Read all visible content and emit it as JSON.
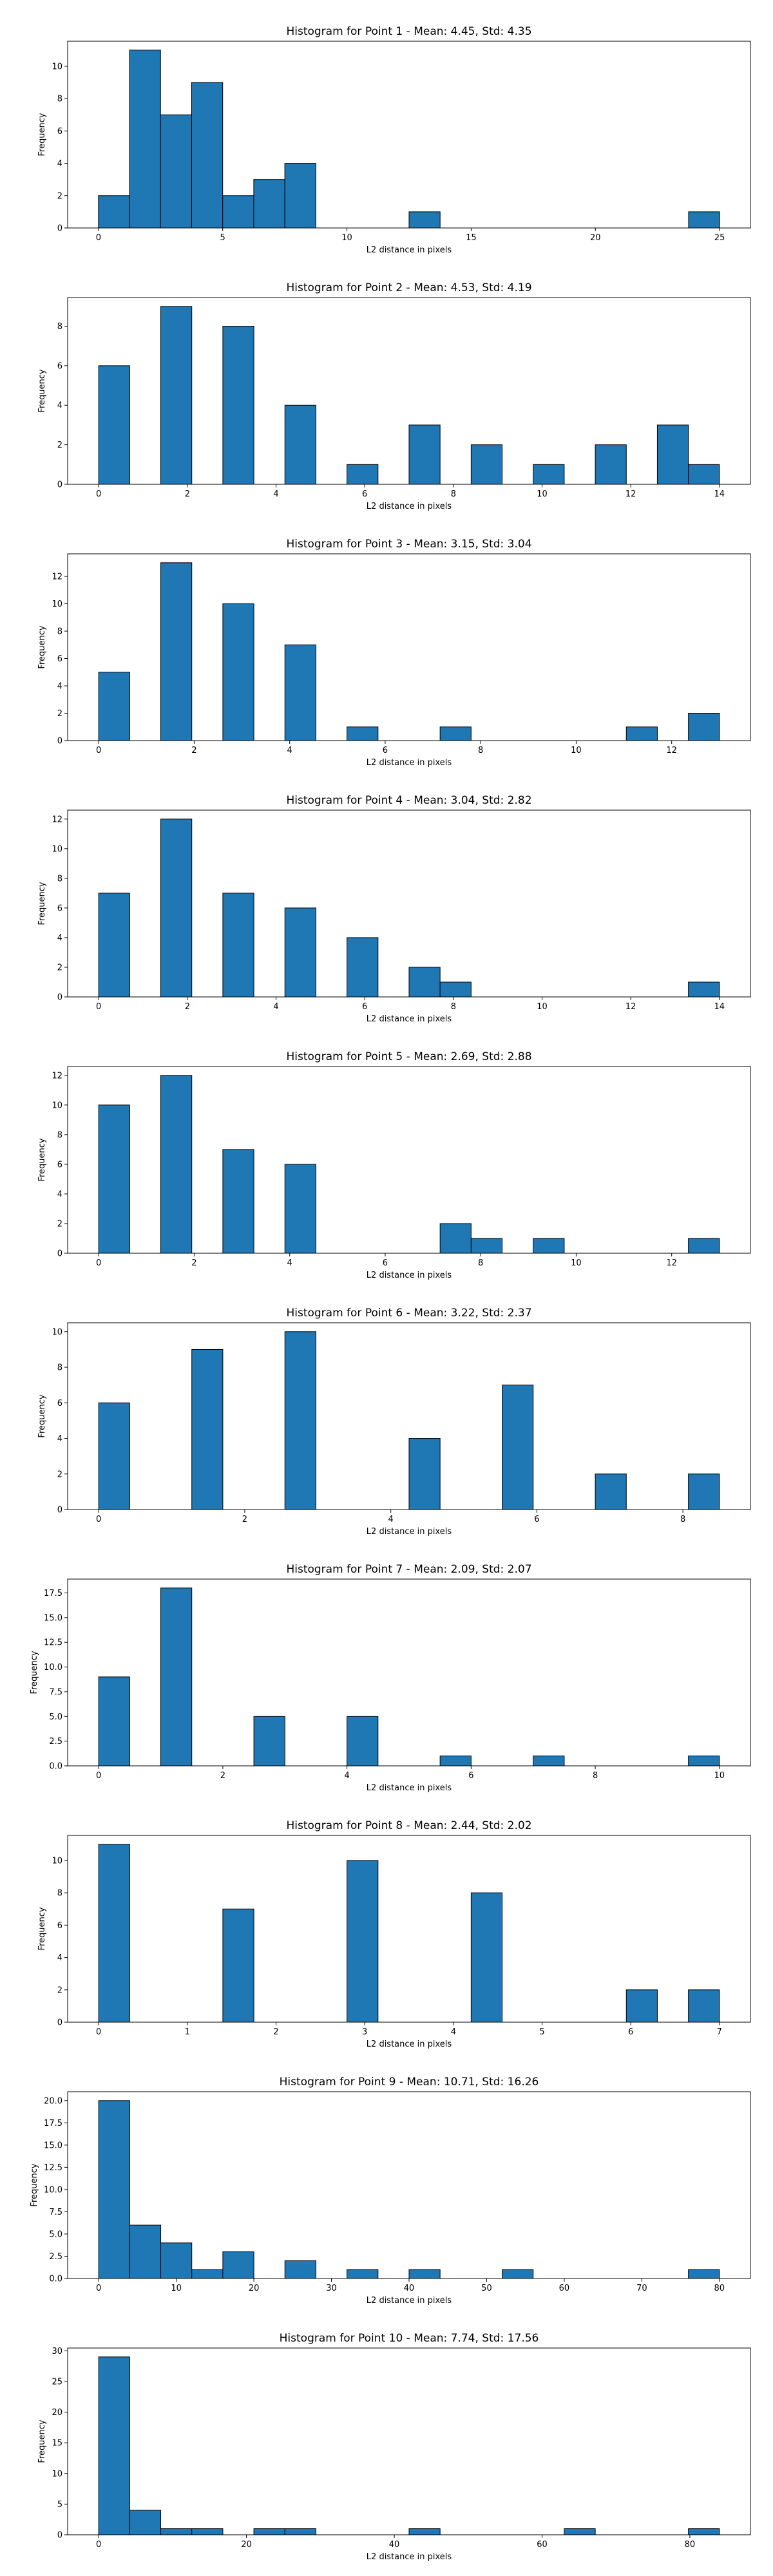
{
  "colors": {
    "bar": "#1f77b4",
    "edge": "#000000",
    "background": "#ffffff"
  },
  "chart_data": [
    {
      "type": "bar",
      "title": "Histogram for Point 1 - Mean: 4.45, Std: 4.35",
      "xlabel": "L2 distance in pixels",
      "ylabel": "Frequency",
      "xlim": [
        -1.24,
        26.24
      ],
      "ylim": [
        0,
        11.55
      ],
      "xticks": [
        0,
        5,
        10,
        15,
        20,
        25
      ],
      "yticks": [
        0,
        2,
        4,
        6,
        8,
        10
      ],
      "bins": [
        [
          0,
          1.25,
          2
        ],
        [
          1.25,
          2.5,
          11
        ],
        [
          2.5,
          3.75,
          7
        ],
        [
          3.75,
          5,
          9
        ],
        [
          5,
          6.25,
          2
        ],
        [
          6.25,
          7.5,
          3
        ],
        [
          7.5,
          8.75,
          4
        ],
        [
          12.5,
          13.75,
          1
        ],
        [
          23.75,
          25,
          1
        ]
      ]
    },
    {
      "type": "bar",
      "title": "Histogram for Point 2 - Mean: 4.53, Std: 4.19",
      "xlabel": "L2 distance in pixels",
      "ylabel": "Frequency",
      "xlim": [
        -0.7,
        14.7
      ],
      "ylim": [
        0,
        9.45
      ],
      "xticks": [
        0,
        2,
        4,
        6,
        8,
        10,
        12,
        14
      ],
      "yticks": [
        0,
        2,
        4,
        6,
        8
      ],
      "bins": [
        [
          0,
          0.7,
          6
        ],
        [
          1.4,
          2.1,
          9
        ],
        [
          2.8,
          3.5,
          8
        ],
        [
          4.2,
          4.9,
          4
        ],
        [
          5.6,
          6.3,
          1
        ],
        [
          7,
          7.7,
          3
        ],
        [
          8.4,
          9.1,
          2
        ],
        [
          9.8,
          10.5,
          1
        ],
        [
          11.2,
          11.9,
          2
        ],
        [
          12.6,
          13.3,
          3
        ],
        [
          13.3,
          14,
          1
        ]
      ]
    },
    {
      "type": "bar",
      "title": "Histogram for Point 3 - Mean: 3.15, Std: 3.04",
      "xlabel": "L2 distance in pixels",
      "ylabel": "Frequency",
      "xlim": [
        -0.65,
        13.65
      ],
      "ylim": [
        0,
        13.65
      ],
      "xticks": [
        0,
        2,
        4,
        6,
        8,
        10,
        12
      ],
      "yticks": [
        0,
        2,
        4,
        6,
        8,
        10,
        12
      ],
      "bins": [
        [
          0,
          0.65,
          5
        ],
        [
          1.3,
          1.95,
          13
        ],
        [
          2.6,
          3.25,
          10
        ],
        [
          3.9,
          4.55,
          7
        ],
        [
          5.2,
          5.85,
          1
        ],
        [
          7.15,
          7.8,
          1
        ],
        [
          11.05,
          11.7,
          1
        ],
        [
          12.35,
          13,
          2
        ]
      ]
    },
    {
      "type": "bar",
      "title": "Histogram for Point 4 - Mean: 3.04, Std: 2.82",
      "xlabel": "L2 distance in pixels",
      "ylabel": "Frequency",
      "xlim": [
        -0.7,
        14.7
      ],
      "ylim": [
        0,
        12.6
      ],
      "xticks": [
        0,
        2,
        4,
        6,
        8,
        10,
        12,
        14
      ],
      "yticks": [
        0,
        2,
        4,
        6,
        8,
        10,
        12
      ],
      "bins": [
        [
          0,
          0.7,
          7
        ],
        [
          1.4,
          2.1,
          12
        ],
        [
          2.8,
          3.5,
          7
        ],
        [
          4.2,
          4.9,
          6
        ],
        [
          5.6,
          6.3,
          4
        ],
        [
          7,
          7.7,
          2
        ],
        [
          7.7,
          8.4,
          1
        ],
        [
          13.3,
          14,
          1
        ]
      ]
    },
    {
      "type": "bar",
      "title": "Histogram for Point 5 - Mean: 2.69, Std: 2.88",
      "xlabel": "L2 distance in pixels",
      "ylabel": "Frequency",
      "xlim": [
        -0.65,
        13.65
      ],
      "ylim": [
        0,
        12.6
      ],
      "xticks": [
        0,
        2,
        4,
        6,
        8,
        10,
        12
      ],
      "yticks": [
        0,
        2,
        4,
        6,
        8,
        10,
        12
      ],
      "bins": [
        [
          0,
          0.65,
          10
        ],
        [
          1.3,
          1.95,
          12
        ],
        [
          2.6,
          3.25,
          7
        ],
        [
          3.9,
          4.55,
          6
        ],
        [
          7.15,
          7.8,
          2
        ],
        [
          7.8,
          8.45,
          1
        ],
        [
          9.1,
          9.75,
          1
        ],
        [
          12.35,
          13,
          1
        ]
      ]
    },
    {
      "type": "bar",
      "title": "Histogram for Point 6 - Mean: 3.22, Std: 2.37",
      "xlabel": "L2 distance in pixels",
      "ylabel": "Frequency",
      "xlim": [
        -0.425,
        8.925
      ],
      "ylim": [
        0,
        10.5
      ],
      "xticks": [
        0,
        2,
        4,
        6,
        8
      ],
      "yticks": [
        0,
        2,
        4,
        6,
        8,
        10
      ],
      "bins": [
        [
          0,
          0.425,
          6
        ],
        [
          1.275,
          1.7,
          9
        ],
        [
          2.55,
          2.975,
          10
        ],
        [
          4.25,
          4.675,
          4
        ],
        [
          5.525,
          5.95,
          7
        ],
        [
          6.8,
          7.225,
          2
        ],
        [
          8.075,
          8.5,
          2
        ]
      ]
    },
    {
      "type": "bar",
      "title": "Histogram for Point 7 - Mean: 2.09, Std: 2.07",
      "xlabel": "L2 distance in pixels",
      "ylabel": "Frequency",
      "xlim": [
        -0.5,
        10.5
      ],
      "ylim": [
        0,
        18.9
      ],
      "xticks": [
        0,
        2,
        4,
        6,
        8,
        10
      ],
      "yticks": [
        0.0,
        2.5,
        5.0,
        7.5,
        10.0,
        12.5,
        15.0,
        17.5
      ],
      "yticklabels": [
        "0.0",
        "2.5",
        "5.0",
        "7.5",
        "10.0",
        "12.5",
        "15.0",
        "17.5"
      ],
      "bins": [
        [
          0,
          0.5,
          9
        ],
        [
          1,
          1.5,
          18
        ],
        [
          2.5,
          3,
          5
        ],
        [
          4,
          4.5,
          5
        ],
        [
          5.5,
          6,
          1
        ],
        [
          7,
          7.5,
          1
        ],
        [
          9.5,
          10,
          1
        ]
      ]
    },
    {
      "type": "bar",
      "title": "Histogram for Point 8 - Mean: 2.44, Std: 2.02",
      "xlabel": "L2 distance in pixels",
      "ylabel": "Frequency",
      "xlim": [
        -0.35,
        7.35
      ],
      "ylim": [
        0,
        11.55
      ],
      "xticks": [
        0,
        1,
        2,
        3,
        4,
        5,
        6,
        7
      ],
      "yticks": [
        0,
        2,
        4,
        6,
        8,
        10
      ],
      "bins": [
        [
          0,
          0.35,
          11
        ],
        [
          1.4,
          1.75,
          7
        ],
        [
          2.8,
          3.15,
          10
        ],
        [
          4.2,
          4.55,
          8
        ],
        [
          5.95,
          6.3,
          2
        ],
        [
          6.65,
          7,
          2
        ]
      ]
    },
    {
      "type": "bar",
      "title": "Histogram for Point 9 - Mean: 10.71, Std: 16.26",
      "xlabel": "L2 distance in pixels",
      "ylabel": "Frequency",
      "xlim": [
        -4,
        84
      ],
      "ylim": [
        0,
        21
      ],
      "xticks": [
        0,
        10,
        20,
        30,
        40,
        50,
        60,
        70,
        80
      ],
      "yticks": [
        0.0,
        2.5,
        5.0,
        7.5,
        10.0,
        12.5,
        15.0,
        17.5,
        20.0
      ],
      "yticklabels": [
        "0.0",
        "2.5",
        "5.0",
        "7.5",
        "10.0",
        "12.5",
        "15.0",
        "17.5",
        "20.0"
      ],
      "bins": [
        [
          0,
          4,
          20
        ],
        [
          4,
          8,
          6
        ],
        [
          8,
          12,
          4
        ],
        [
          12,
          16,
          1
        ],
        [
          16,
          20,
          3
        ],
        [
          24,
          28,
          2
        ],
        [
          32,
          36,
          1
        ],
        [
          40,
          44,
          1
        ],
        [
          52,
          56,
          1
        ],
        [
          76,
          80,
          1
        ]
      ]
    },
    {
      "type": "bar",
      "title": "Histogram for Point 10 - Mean: 7.74, Std: 17.56",
      "xlabel": "L2 distance in pixels",
      "ylabel": "Frequency",
      "xlim": [
        -4.2,
        88.2
      ],
      "ylim": [
        0,
        30.45
      ],
      "xticks": [
        0,
        20,
        40,
        60,
        80
      ],
      "yticks": [
        0,
        5,
        10,
        15,
        20,
        25,
        30
      ],
      "bins": [
        [
          0,
          4.2,
          29
        ],
        [
          4.2,
          8.4,
          4
        ],
        [
          8.4,
          12.6,
          1
        ],
        [
          12.6,
          16.8,
          1
        ],
        [
          21,
          25.2,
          1
        ],
        [
          25.2,
          29.4,
          1
        ],
        [
          42,
          46.2,
          1
        ],
        [
          63,
          67.2,
          1
        ],
        [
          79.8,
          84,
          1
        ]
      ]
    }
  ]
}
